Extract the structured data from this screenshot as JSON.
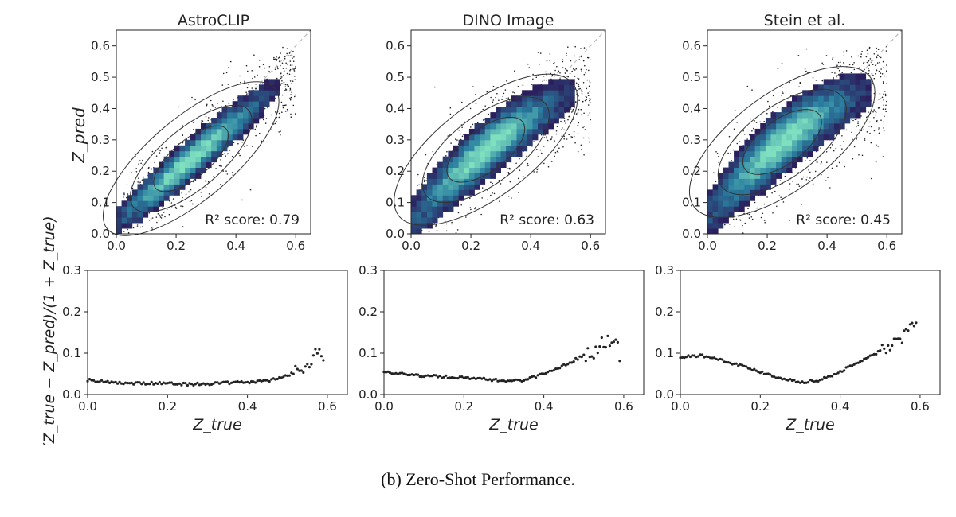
{
  "figure": {
    "caption": "(b) Zero-Shot Performance.",
    "ylabel_top": "Z_pred",
    "ylabel_bottom": "(Z_true − Z_pred)/(1 + Z_true)",
    "xlabel_bottom": "Z_true"
  },
  "colors": {
    "hist_low": "#2b1e5c",
    "hist_mid": "#2a7fa0",
    "hist_high": "#7fe0c0",
    "points": "#222222",
    "diagonal": "#bbbbbb",
    "contour": "#333333"
  },
  "chart_data": [
    {
      "type": "heatmap",
      "panel": "top",
      "title": "AstroCLIP",
      "annotation": "R² score: 0.79",
      "r2": 0.79,
      "xlim": [
        0,
        0.65
      ],
      "ylim": [
        0,
        0.65
      ],
      "xticks": [
        "0.0",
        "0.2",
        "0.4",
        "0.6"
      ],
      "yticks": [
        "0.0",
        "0.1",
        "0.2",
        "0.3",
        "0.4",
        "0.5",
        "0.6"
      ],
      "trend": {
        "slope": 0.8,
        "intercept": 0.04,
        "spread": 0.04,
        "curve": 0
      }
    },
    {
      "type": "heatmap",
      "panel": "top",
      "title": "DINO Image",
      "annotation": "R² score: 0.63",
      "r2": 0.63,
      "xlim": [
        0,
        0.65
      ],
      "ylim": [
        0,
        0.65
      ],
      "xticks": [
        "0.0",
        "0.2",
        "0.4",
        "0.6"
      ],
      "yticks": [
        "0.0",
        "0.1",
        "0.2",
        "0.3",
        "0.4",
        "0.5",
        "0.6"
      ],
      "trend": {
        "slope": 0.72,
        "intercept": 0.09,
        "spread": 0.055,
        "curve": -0.5
      }
    },
    {
      "type": "heatmap",
      "panel": "top",
      "title": "Stein et al.",
      "annotation": "R² score: 0.45",
      "r2": 0.45,
      "xlim": [
        0,
        0.65
      ],
      "ylim": [
        0,
        0.65
      ],
      "xticks": [
        "0.0",
        "0.2",
        "0.4",
        "0.6"
      ],
      "yticks": [
        "0.0",
        "0.1",
        "0.2",
        "0.3",
        "0.4",
        "0.5",
        "0.6"
      ],
      "trend": {
        "slope": 0.7,
        "intercept": 0.12,
        "spread": 0.06,
        "curve": -0.7
      }
    },
    {
      "type": "scatter",
      "panel": "bottom",
      "xlabel": "Z_true",
      "xlim": [
        0,
        0.65
      ],
      "ylim": [
        0,
        0.3
      ],
      "xticks": [
        "0.0",
        "0.2",
        "0.4",
        "0.6"
      ],
      "yticks": [
        "0.0",
        "0.1",
        "0.2",
        "0.3"
      ],
      "x": [
        0.0,
        0.05,
        0.1,
        0.15,
        0.2,
        0.25,
        0.3,
        0.35,
        0.4,
        0.45,
        0.5,
        0.53,
        0.55,
        0.57,
        0.59
      ],
      "y": [
        0.035,
        0.03,
        0.027,
        0.027,
        0.027,
        0.025,
        0.026,
        0.028,
        0.03,
        0.033,
        0.045,
        0.06,
        0.08,
        0.095,
        0.085
      ]
    },
    {
      "type": "scatter",
      "panel": "bottom",
      "xlabel": "Z_true",
      "xlim": [
        0,
        0.65
      ],
      "ylim": [
        0,
        0.3
      ],
      "xticks": [
        "0.0",
        "0.2",
        "0.4",
        "0.6"
      ],
      "yticks": [
        "0.0",
        "0.1",
        "0.2",
        "0.3"
      ],
      "x": [
        0.0,
        0.05,
        0.1,
        0.15,
        0.2,
        0.25,
        0.3,
        0.35,
        0.4,
        0.45,
        0.5,
        0.53,
        0.55,
        0.57,
        0.59
      ],
      "y": [
        0.055,
        0.05,
        0.045,
        0.043,
        0.04,
        0.037,
        0.033,
        0.035,
        0.05,
        0.07,
        0.095,
        0.11,
        0.13,
        0.14,
        0.1
      ]
    },
    {
      "type": "scatter",
      "panel": "bottom",
      "xlabel": "Z_true",
      "xlim": [
        0,
        0.65
      ],
      "ylim": [
        0,
        0.3
      ],
      "xticks": [
        "0.0",
        "0.2",
        "0.4",
        "0.6"
      ],
      "yticks": [
        "0.0",
        "0.1",
        "0.2",
        "0.3"
      ],
      "x": [
        0.0,
        0.05,
        0.1,
        0.15,
        0.2,
        0.25,
        0.3,
        0.35,
        0.4,
        0.45,
        0.5,
        0.53,
        0.55,
        0.57,
        0.59
      ],
      "y": [
        0.09,
        0.095,
        0.085,
        0.07,
        0.055,
        0.04,
        0.03,
        0.035,
        0.055,
        0.08,
        0.105,
        0.12,
        0.135,
        0.15,
        0.16
      ]
    }
  ]
}
